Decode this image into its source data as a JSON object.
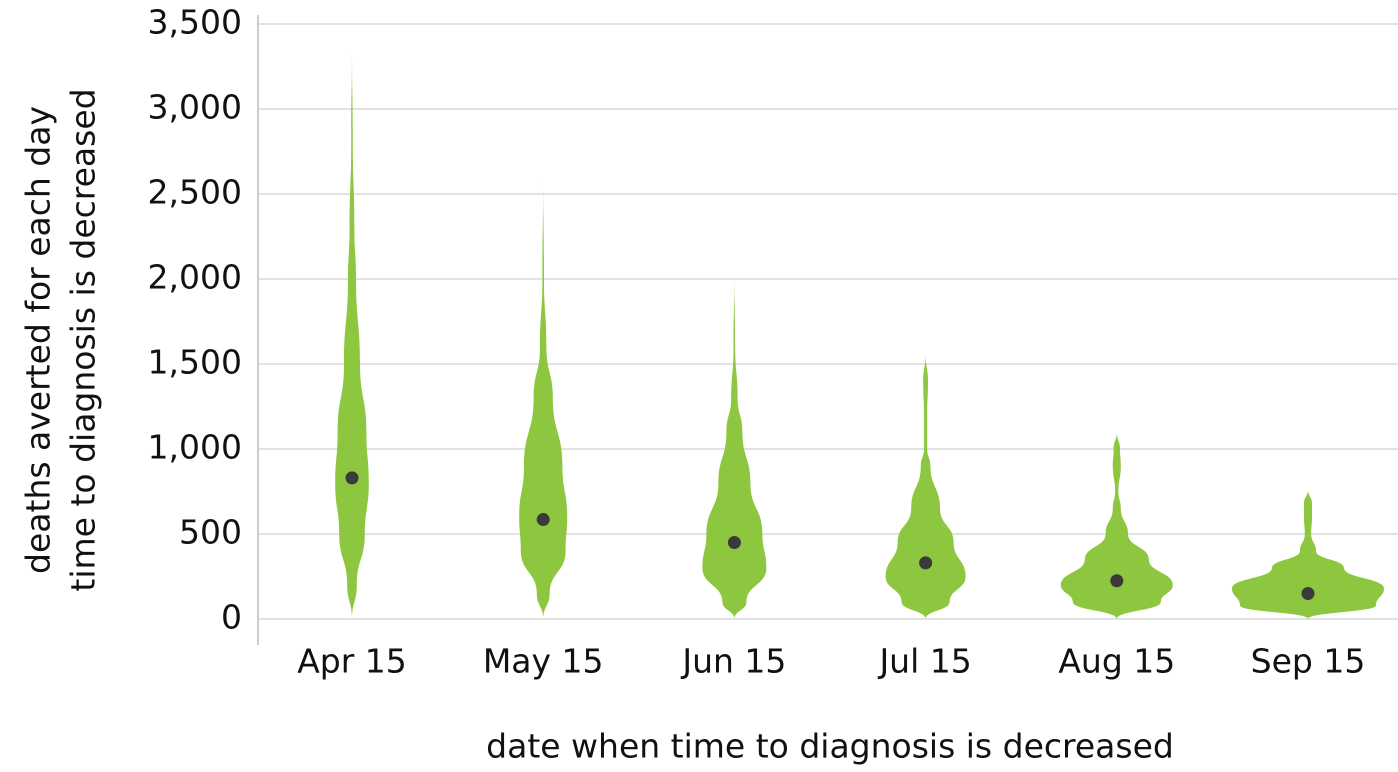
{
  "chart_data": {
    "type": "violin",
    "xlabel": "date when time to diagnosis is decreased",
    "ylabel": [
      "deaths averted for each day",
      "time to diagnosis is decreased"
    ],
    "categories": [
      "Apr 15",
      "May 15",
      "Jun 15",
      "Jul 15",
      "Aug 15",
      "Sep 15"
    ],
    "values": [
      830,
      585,
      450,
      330,
      225,
      150
    ],
    "violins": [
      {
        "y": [
          0,
          200,
          500,
          800,
          1100,
          1500,
          2000,
          2300,
          2800,
          3380
        ],
        "density": [
          0,
          0.06,
          0.16,
          0.21,
          0.18,
          0.1,
          0.05,
          0.03,
          0.01,
          0
        ]
      },
      {
        "y": [
          0,
          150,
          400,
          600,
          900,
          1300,
          1600,
          2000,
          2600
        ],
        "density": [
          0,
          0.08,
          0.28,
          0.3,
          0.24,
          0.12,
          0.04,
          0.01,
          0
        ]
      },
      {
        "y": [
          0,
          100,
          300,
          500,
          800,
          1100,
          1300,
          1600,
          2040
        ],
        "density": [
          0,
          0.15,
          0.4,
          0.35,
          0.2,
          0.1,
          0.04,
          0.01,
          0
        ]
      },
      {
        "y": [
          0,
          100,
          250,
          450,
          650,
          900,
          1000,
          1200,
          1400,
          1560
        ],
        "density": [
          0,
          0.3,
          0.5,
          0.35,
          0.18,
          0.06,
          0.02,
          0.02,
          0.03,
          0
        ]
      },
      {
        "y": [
          0,
          100,
          200,
          350,
          500,
          650,
          750,
          900,
          1000,
          1100
        ],
        "density": [
          0,
          0.55,
          0.7,
          0.4,
          0.14,
          0.05,
          0.02,
          0.05,
          0.04,
          0
        ]
      },
      {
        "y": [
          0,
          80,
          180,
          300,
          400,
          500,
          600,
          680,
          760
        ],
        "density": [
          0,
          0.85,
          0.95,
          0.45,
          0.1,
          0.04,
          0.05,
          0.05,
          0
        ]
      }
    ],
    "color": "#8dc63f",
    "median_color": "#3a3a3a",
    "ylim": [
      0,
      3500
    ],
    "yticks": [
      0,
      500,
      {
        "value": 1000,
        "label": "1,000"
      },
      {
        "value": 1500,
        "label": "1,500"
      },
      {
        "value": 2000,
        "label": "2,000"
      },
      {
        "value": 2500,
        "label": "2,500"
      },
      {
        "value": 3000,
        "label": "3,000"
      },
      {
        "value": 3500,
        "label": "3,500"
      }
    ],
    "grid": true
  }
}
